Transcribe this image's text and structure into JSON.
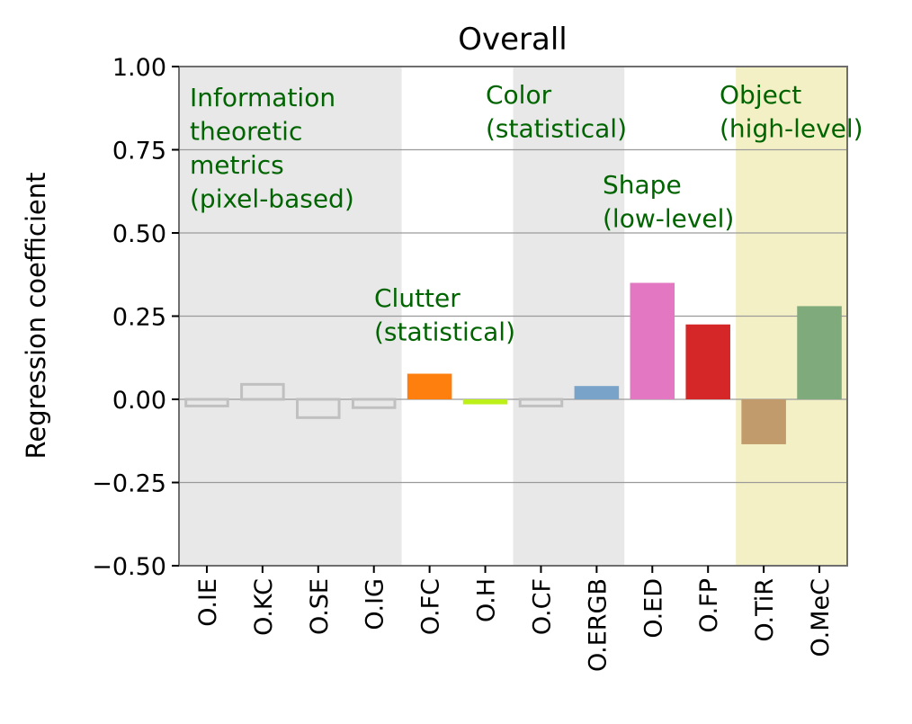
{
  "chart_data": {
    "type": "bar",
    "title": "Overall",
    "ylabel": "Regression coefficient",
    "xlabel": "",
    "ylim": [
      -0.5,
      1.0
    ],
    "yticks": [
      1.0,
      0.75,
      0.5,
      0.25,
      0.0,
      -0.25,
      -0.5
    ],
    "ytick_labels": [
      "1.00",
      "0.75",
      "0.50",
      "0.25",
      "0.00",
      "−0.25",
      "−0.50"
    ],
    "grid": "horizontal",
    "categories": [
      "O.IE",
      "O.KC",
      "O.SE",
      "O.IG",
      "O.FC",
      "O.H",
      "O.CF",
      "O.ERGB",
      "O.ED",
      "O.FP",
      "O.TiR",
      "O.MeC"
    ],
    "values": [
      -0.02,
      0.045,
      -0.055,
      -0.025,
      0.077,
      -0.015,
      -0.02,
      0.04,
      0.35,
      0.225,
      -0.135,
      0.28
    ],
    "bar_styles": [
      "outline",
      "outline",
      "outline",
      "outline",
      "filled",
      "filled",
      "outline",
      "filled",
      "filled",
      "filled",
      "filled",
      "filled"
    ],
    "bar_colors": [
      "#c0c0c0",
      "#c0c0c0",
      "#c0c0c0",
      "#c0c0c0",
      "#ff7f0e",
      "#bdf018",
      "#c0c0c0",
      "#79a3c9",
      "#e377c2",
      "#d62728",
      "#c19b6c",
      "#7faa7b"
    ],
    "groups": [
      {
        "label_lines": [
          "Information",
          "theoretic",
          "metrics",
          "(pixel-based)"
        ],
        "start": 0,
        "end": 3,
        "shade": "#e8e8e8"
      },
      {
        "label_lines": [
          "Clutter",
          "(statistical)"
        ],
        "start": 4,
        "end": 5,
        "shade": "#ffffff"
      },
      {
        "label_lines": [
          "Color",
          "(statistical)"
        ],
        "start": 6,
        "end": 7,
        "shade": "#e8e8e8"
      },
      {
        "label_lines": [
          "Shape",
          "(low-level)"
        ],
        "start": 8,
        "end": 9,
        "shade": "#ffffff"
      },
      {
        "label_lines": [
          "Object",
          "(high-level)"
        ],
        "start": 10,
        "end": 11,
        "shade": "#f4f0c6"
      }
    ],
    "annotation_color": "#006400"
  }
}
